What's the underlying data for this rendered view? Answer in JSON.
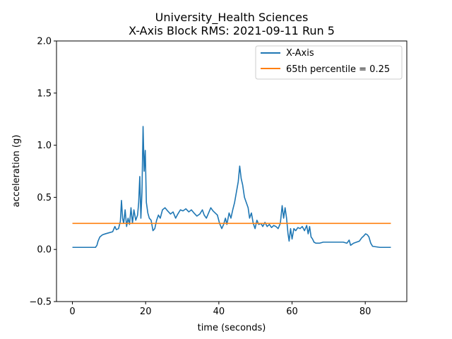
{
  "chart_data": {
    "type": "line",
    "title": "University_Health Sciences",
    "subtitle": "X-Axis Block RMS: 2021-09-11 Run 5",
    "xlabel": "time (seconds)",
    "ylabel": "acceleration (g)",
    "xlim": [
      -4.35,
      91.35
    ],
    "ylim": [
      -0.5,
      2.0
    ],
    "xticks": [
      0,
      20,
      40,
      60,
      80
    ],
    "yticks": [
      -0.5,
      0.0,
      0.5,
      1.0,
      1.5,
      2.0
    ],
    "xtick_labels": [
      "0",
      "20",
      "40",
      "60",
      "80"
    ],
    "ytick_labels": [
      "−0.5",
      "0.0",
      "0.5",
      "1.0",
      "1.5",
      "2.0"
    ],
    "grid": false,
    "legend_position": "top-right",
    "series": [
      {
        "name": "X-Axis",
        "color": "#1f77b4",
        "points": [
          [
            0,
            0.02
          ],
          [
            3,
            0.02
          ],
          [
            6.3,
            0.02
          ],
          [
            6.7,
            0.04
          ],
          [
            7.0,
            0.08
          ],
          [
            7.5,
            0.12
          ],
          [
            8.2,
            0.14
          ],
          [
            9.0,
            0.15
          ],
          [
            10.0,
            0.16
          ],
          [
            11.0,
            0.17
          ],
          [
            11.6,
            0.22
          ],
          [
            12.0,
            0.19
          ],
          [
            12.6,
            0.2
          ],
          [
            13.1,
            0.27
          ],
          [
            13.4,
            0.47
          ],
          [
            13.7,
            0.3
          ],
          [
            14.0,
            0.25
          ],
          [
            14.4,
            0.38
          ],
          [
            14.8,
            0.22
          ],
          [
            15.2,
            0.3
          ],
          [
            15.6,
            0.24
          ],
          [
            16.0,
            0.4
          ],
          [
            16.4,
            0.25
          ],
          [
            16.8,
            0.38
          ],
          [
            17.3,
            0.28
          ],
          [
            17.8,
            0.33
          ],
          [
            18.1,
            0.45
          ],
          [
            18.4,
            0.7
          ],
          [
            18.7,
            0.3
          ],
          [
            19.0,
            0.55
          ],
          [
            19.3,
            1.18
          ],
          [
            19.6,
            0.75
          ],
          [
            19.9,
            0.95
          ],
          [
            20.2,
            0.45
          ],
          [
            20.6,
            0.35
          ],
          [
            21.0,
            0.3
          ],
          [
            21.5,
            0.28
          ],
          [
            22.0,
            0.18
          ],
          [
            22.5,
            0.2
          ],
          [
            23.0,
            0.28
          ],
          [
            23.5,
            0.33
          ],
          [
            24.0,
            0.3
          ],
          [
            24.6,
            0.38
          ],
          [
            25.3,
            0.4
          ],
          [
            26.0,
            0.37
          ],
          [
            26.8,
            0.34
          ],
          [
            27.5,
            0.36
          ],
          [
            28.2,
            0.3
          ],
          [
            28.8,
            0.34
          ],
          [
            29.5,
            0.38
          ],
          [
            30.2,
            0.37
          ],
          [
            31.0,
            0.39
          ],
          [
            31.8,
            0.36
          ],
          [
            32.5,
            0.38
          ],
          [
            33.2,
            0.35
          ],
          [
            34.0,
            0.32
          ],
          [
            34.8,
            0.34
          ],
          [
            35.5,
            0.38
          ],
          [
            36.0,
            0.33
          ],
          [
            36.6,
            0.3
          ],
          [
            37.2,
            0.35
          ],
          [
            37.8,
            0.4
          ],
          [
            38.4,
            0.37
          ],
          [
            39.0,
            0.35
          ],
          [
            39.6,
            0.33
          ],
          [
            40.2,
            0.25
          ],
          [
            40.8,
            0.2
          ],
          [
            41.3,
            0.24
          ],
          [
            41.8,
            0.3
          ],
          [
            42.2,
            0.24
          ],
          [
            42.8,
            0.35
          ],
          [
            43.3,
            0.3
          ],
          [
            43.8,
            0.38
          ],
          [
            44.3,
            0.45
          ],
          [
            44.8,
            0.55
          ],
          [
            45.3,
            0.65
          ],
          [
            45.7,
            0.8
          ],
          [
            46.1,
            0.68
          ],
          [
            46.5,
            0.62
          ],
          [
            47.0,
            0.5
          ],
          [
            47.5,
            0.45
          ],
          [
            48.0,
            0.4
          ],
          [
            48.4,
            0.3
          ],
          [
            48.9,
            0.35
          ],
          [
            49.4,
            0.25
          ],
          [
            49.9,
            0.2
          ],
          [
            50.4,
            0.28
          ],
          [
            50.9,
            0.24
          ],
          [
            51.5,
            0.25
          ],
          [
            52.0,
            0.22
          ],
          [
            52.6,
            0.26
          ],
          [
            53.2,
            0.22
          ],
          [
            53.8,
            0.24
          ],
          [
            54.4,
            0.21
          ],
          [
            55.0,
            0.23
          ],
          [
            55.6,
            0.22
          ],
          [
            56.2,
            0.2
          ],
          [
            56.8,
            0.25
          ],
          [
            57.3,
            0.42
          ],
          [
            57.7,
            0.3
          ],
          [
            58.1,
            0.4
          ],
          [
            58.5,
            0.3
          ],
          [
            58.9,
            0.15
          ],
          [
            59.2,
            0.08
          ],
          [
            59.6,
            0.2
          ],
          [
            60.0,
            0.1
          ],
          [
            60.5,
            0.2
          ],
          [
            61.0,
            0.18
          ],
          [
            61.6,
            0.21
          ],
          [
            62.2,
            0.2
          ],
          [
            62.8,
            0.22
          ],
          [
            63.4,
            0.18
          ],
          [
            64.0,
            0.23
          ],
          [
            64.4,
            0.15
          ],
          [
            64.8,
            0.22
          ],
          [
            65.2,
            0.12
          ],
          [
            65.6,
            0.1
          ],
          [
            66.0,
            0.07
          ],
          [
            66.5,
            0.06
          ],
          [
            67.5,
            0.06
          ],
          [
            68.5,
            0.07
          ],
          [
            70.0,
            0.07
          ],
          [
            72.0,
            0.07
          ],
          [
            74.0,
            0.07
          ],
          [
            75.0,
            0.06
          ],
          [
            75.6,
            0.09
          ],
          [
            76.0,
            0.04
          ],
          [
            76.8,
            0.06
          ],
          [
            77.6,
            0.07
          ],
          [
            78.4,
            0.08
          ],
          [
            79.0,
            0.11
          ],
          [
            79.6,
            0.13
          ],
          [
            80.1,
            0.15
          ],
          [
            80.6,
            0.14
          ],
          [
            81.0,
            0.12
          ],
          [
            81.5,
            0.06
          ],
          [
            82.0,
            0.03
          ],
          [
            84.0,
            0.02
          ],
          [
            87.0,
            0.02
          ]
        ]
      },
      {
        "name": "65th percentile = 0.25",
        "color": "#ff7f0e",
        "points": [
          [
            0,
            0.25
          ],
          [
            87,
            0.25
          ]
        ]
      }
    ]
  }
}
